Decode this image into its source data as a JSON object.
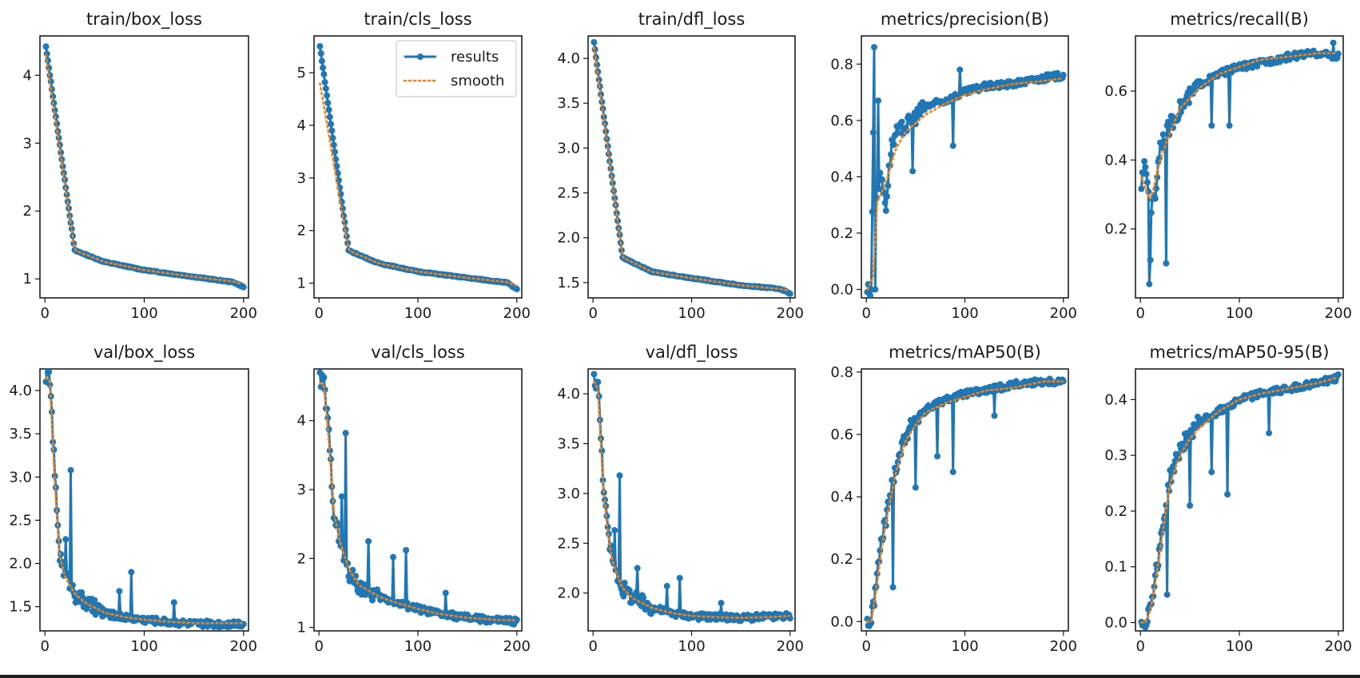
{
  "figure": {
    "legend_results": "results",
    "legend_smooth": "smooth"
  },
  "colors": {
    "results": "#1f77b4",
    "smooth": "#ff7f0e",
    "axis": "#111111",
    "background": "#ffffff"
  },
  "chart_data": [
    {
      "type": "line",
      "id": "train-box-loss",
      "title": "train/box_loss",
      "xlabel": "",
      "ylabel": "",
      "xlim": [
        -5,
        205
      ],
      "ylim": [
        0.72,
        4.58
      ],
      "xticks": [
        0,
        100,
        200
      ],
      "yticks": [
        1,
        2,
        3,
        4
      ],
      "ytick_labels": [
        "1",
        "2",
        "3",
        "4"
      ],
      "grid": false,
      "series": [
        {
          "name": "results",
          "shape": "decay",
          "x": [
            1,
            30,
            60,
            100,
            150,
            190,
            200
          ],
          "values": [
            4.42,
            1.42,
            1.25,
            1.13,
            1.03,
            0.95,
            0.88
          ]
        },
        {
          "name": "smooth",
          "shape": "decay",
          "x": [
            1,
            30,
            60,
            100,
            150,
            190,
            200
          ],
          "values": [
            4.3,
            1.42,
            1.25,
            1.13,
            1.03,
            0.96,
            0.92
          ]
        }
      ],
      "legend": null
    },
    {
      "type": "line",
      "id": "train-cls-loss",
      "title": "train/cls_loss",
      "xlabel": "",
      "ylabel": "",
      "xlim": [
        -5,
        205
      ],
      "ylim": [
        0.72,
        5.7
      ],
      "xticks": [
        0,
        100,
        200
      ],
      "yticks": [
        1,
        2,
        3,
        4,
        5
      ],
      "ytick_labels": [
        "1",
        "2",
        "3",
        "4",
        "5"
      ],
      "grid": false,
      "series": [
        {
          "name": "results",
          "shape": "decay",
          "x": [
            1,
            30,
            60,
            100,
            150,
            190,
            200
          ],
          "values": [
            5.5,
            1.62,
            1.38,
            1.22,
            1.1,
            1.01,
            0.88
          ]
        },
        {
          "name": "smooth",
          "shape": "decay",
          "x": [
            1,
            30,
            60,
            100,
            150,
            190,
            200
          ],
          "values": [
            4.8,
            1.62,
            1.38,
            1.22,
            1.1,
            1.02,
            0.95
          ]
        }
      ],
      "legend": "top-right"
    },
    {
      "type": "line",
      "id": "train-dfl-loss",
      "title": "train/dfl_loss",
      "xlabel": "",
      "ylabel": "",
      "xlim": [
        -5,
        205
      ],
      "ylim": [
        1.33,
        4.25
      ],
      "xticks": [
        0,
        100,
        200
      ],
      "yticks": [
        1.5,
        2.0,
        2.5,
        3.0,
        3.5,
        4.0
      ],
      "ytick_labels": [
        "1.5",
        "2.0",
        "2.5",
        "3.0",
        "3.5",
        "4.0"
      ],
      "grid": false,
      "series": [
        {
          "name": "results",
          "shape": "decay",
          "x": [
            1,
            30,
            60,
            100,
            150,
            190,
            200
          ],
          "values": [
            4.18,
            1.78,
            1.62,
            1.55,
            1.47,
            1.43,
            1.38
          ]
        },
        {
          "name": "smooth",
          "shape": "decay",
          "x": [
            1,
            30,
            60,
            100,
            150,
            190,
            200
          ],
          "values": [
            4.12,
            1.78,
            1.62,
            1.55,
            1.47,
            1.43,
            1.41
          ]
        }
      ],
      "legend": null
    },
    {
      "type": "line",
      "id": "metrics-precision",
      "title": "metrics/precision(B)",
      "xlabel": "",
      "ylabel": "",
      "xlim": [
        -5,
        205
      ],
      "ylim": [
        -0.03,
        0.9
      ],
      "xticks": [
        0,
        100,
        200
      ],
      "yticks": [
        0.0,
        0.2,
        0.4,
        0.6,
        0.8
      ],
      "ytick_labels": [
        "0.0",
        "0.2",
        "0.4",
        "0.6",
        "0.8"
      ],
      "grid": false,
      "series": [
        {
          "name": "results",
          "shape": "rise-noisy",
          "x": [
            1,
            5,
            8,
            10,
            15,
            20,
            25,
            30,
            40,
            60,
            80,
            100,
            120,
            150,
            180,
            200
          ],
          "values": [
            0.0,
            0.0,
            0.86,
            0.35,
            0.4,
            0.3,
            0.5,
            0.55,
            0.58,
            0.65,
            0.67,
            0.7,
            0.72,
            0.73,
            0.75,
            0.76
          ],
          "spikes": [
            [
              8,
              0.86
            ],
            [
              9,
              0.0
            ],
            [
              12,
              0.67
            ],
            [
              47,
              0.42
            ],
            [
              88,
              0.51
            ],
            [
              95,
              0.78
            ]
          ]
        },
        {
          "name": "smooth",
          "shape": "rise",
          "x": [
            1,
            8,
            10,
            20,
            30,
            40,
            60,
            80,
            100,
            120,
            150,
            180,
            200
          ],
          "values": [
            0.0,
            0.05,
            0.3,
            0.38,
            0.5,
            0.56,
            0.62,
            0.66,
            0.69,
            0.71,
            0.73,
            0.74,
            0.75
          ]
        }
      ],
      "legend": null
    },
    {
      "type": "line",
      "id": "metrics-recall",
      "title": "metrics/recall(B)",
      "xlabel": "",
      "ylabel": "",
      "xlim": [
        -5,
        205
      ],
      "ylim": [
        0.0,
        0.76
      ],
      "xticks": [
        0,
        100,
        200
      ],
      "yticks": [
        0.2,
        0.4,
        0.6
      ],
      "ytick_labels": [
        "0.2",
        "0.4",
        "0.6"
      ],
      "grid": false,
      "series": [
        {
          "name": "results",
          "shape": "rise-noisy",
          "x": [
            1,
            5,
            10,
            15,
            20,
            25,
            30,
            40,
            60,
            80,
            100,
            120,
            150,
            180,
            200
          ],
          "values": [
            0.33,
            0.39,
            0.25,
            0.3,
            0.45,
            0.47,
            0.5,
            0.55,
            0.62,
            0.65,
            0.67,
            0.68,
            0.7,
            0.71,
            0.7
          ],
          "spikes": [
            [
              9,
              0.04
            ],
            [
              10,
              0.11
            ],
            [
              26,
              0.1
            ],
            [
              72,
              0.5
            ],
            [
              90,
              0.5
            ],
            [
              195,
              0.74
            ]
          ]
        },
        {
          "name": "smooth",
          "shape": "rise",
          "x": [
            1,
            10,
            20,
            30,
            40,
            60,
            80,
            100,
            120,
            150,
            180,
            200
          ],
          "values": [
            0.35,
            0.28,
            0.4,
            0.48,
            0.55,
            0.61,
            0.65,
            0.67,
            0.69,
            0.7,
            0.71,
            0.71
          ]
        }
      ],
      "legend": null
    },
    {
      "type": "line",
      "id": "val-box-loss",
      "title": "val/box_loss",
      "xlabel": "",
      "ylabel": "",
      "xlim": [
        -5,
        205
      ],
      "ylim": [
        1.22,
        4.25
      ],
      "xticks": [
        0,
        100,
        200
      ],
      "yticks": [
        1.5,
        2.0,
        2.5,
        3.0,
        3.5,
        4.0
      ],
      "ytick_labels": [
        "1.5",
        "2.0",
        "2.5",
        "3.0",
        "3.5",
        "4.0"
      ],
      "grid": false,
      "series": [
        {
          "name": "results",
          "shape": "decay-noisy",
          "x": [
            1,
            5,
            10,
            15,
            20,
            30,
            40,
            60,
            80,
            100,
            120,
            150,
            180,
            200
          ],
          "values": [
            4.18,
            4.15,
            3.0,
            2.1,
            1.9,
            1.65,
            1.55,
            1.42,
            1.38,
            1.35,
            1.33,
            1.3,
            1.3,
            1.31
          ],
          "spikes": [
            [
              26,
              3.08
            ],
            [
              21,
              2.28
            ],
            [
              87,
              1.9
            ],
            [
              75,
              1.68
            ],
            [
              130,
              1.55
            ]
          ]
        },
        {
          "name": "smooth",
          "shape": "decay",
          "x": [
            1,
            5,
            10,
            15,
            20,
            30,
            40,
            60,
            80,
            100,
            120,
            150,
            180,
            200
          ],
          "values": [
            4.15,
            4.1,
            2.9,
            2.1,
            1.85,
            1.65,
            1.55,
            1.43,
            1.38,
            1.35,
            1.33,
            1.31,
            1.31,
            1.31
          ]
        }
      ],
      "legend": null
    },
    {
      "type": "line",
      "id": "val-cls-loss",
      "title": "val/cls_loss",
      "xlabel": "",
      "ylabel": "",
      "xlim": [
        -5,
        205
      ],
      "ylim": [
        0.95,
        4.75
      ],
      "xticks": [
        0,
        100,
        200
      ],
      "yticks": [
        1,
        2,
        3,
        4
      ],
      "ytick_labels": [
        "1",
        "2",
        "3",
        "4"
      ],
      "grid": false,
      "series": [
        {
          "name": "results",
          "shape": "decay-noisy",
          "x": [
            1,
            5,
            10,
            15,
            20,
            30,
            40,
            60,
            80,
            100,
            120,
            150,
            180,
            200
          ],
          "values": [
            4.6,
            4.55,
            3.8,
            2.7,
            2.3,
            1.8,
            1.6,
            1.45,
            1.35,
            1.27,
            1.2,
            1.14,
            1.1,
            1.09
          ],
          "spikes": [
            [
              27,
              3.82
            ],
            [
              23,
              2.9
            ],
            [
              50,
              2.25
            ],
            [
              75,
              2.02
            ],
            [
              88,
              2.12
            ],
            [
              128,
              1.5
            ]
          ]
        },
        {
          "name": "smooth",
          "shape": "decay",
          "x": [
            1,
            5,
            10,
            15,
            20,
            30,
            40,
            60,
            80,
            100,
            120,
            150,
            180,
            200
          ],
          "values": [
            4.55,
            4.5,
            3.7,
            2.7,
            2.3,
            1.85,
            1.62,
            1.45,
            1.35,
            1.27,
            1.2,
            1.14,
            1.11,
            1.1
          ]
        }
      ],
      "legend": null
    },
    {
      "type": "line",
      "id": "val-dfl-loss",
      "title": "val/dfl_loss",
      "xlabel": "",
      "ylabel": "",
      "xlim": [
        -5,
        205
      ],
      "ylim": [
        1.62,
        4.25
      ],
      "xticks": [
        0,
        100,
        200
      ],
      "yticks": [
        2.0,
        2.5,
        3.0,
        3.5,
        4.0
      ],
      "ytick_labels": [
        "2.0",
        "2.5",
        "3.0",
        "3.5",
        "4.0"
      ],
      "grid": false,
      "series": [
        {
          "name": "results",
          "shape": "decay-noisy",
          "x": [
            1,
            5,
            10,
            15,
            20,
            30,
            40,
            60,
            80,
            100,
            120,
            150,
            180,
            200
          ],
          "values": [
            4.15,
            4.1,
            3.2,
            2.6,
            2.3,
            2.05,
            1.95,
            1.85,
            1.8,
            1.77,
            1.76,
            1.75,
            1.76,
            1.77
          ],
          "spikes": [
            [
              27,
              3.18
            ],
            [
              22,
              2.63
            ],
            [
              45,
              2.25
            ],
            [
              75,
              2.07
            ],
            [
              88,
              2.15
            ],
            [
              130,
              1.9
            ]
          ]
        },
        {
          "name": "smooth",
          "shape": "decay",
          "x": [
            1,
            5,
            10,
            15,
            20,
            30,
            40,
            60,
            80,
            100,
            120,
            150,
            180,
            200
          ],
          "values": [
            4.12,
            4.05,
            3.1,
            2.6,
            2.3,
            2.05,
            1.95,
            1.85,
            1.8,
            1.77,
            1.76,
            1.75,
            1.76,
            1.77
          ]
        }
      ],
      "legend": null
    },
    {
      "type": "line",
      "id": "metrics-map50",
      "title": "metrics/mAP50(B)",
      "xlabel": "",
      "ylabel": "",
      "xlim": [
        -5,
        205
      ],
      "ylim": [
        -0.03,
        0.81
      ],
      "xticks": [
        0,
        100,
        200
      ],
      "yticks": [
        0.0,
        0.2,
        0.4,
        0.6,
        0.8
      ],
      "ytick_labels": [
        "0.0",
        "0.2",
        "0.4",
        "0.6",
        "0.8"
      ],
      "grid": false,
      "series": [
        {
          "name": "results",
          "shape": "rise-noisy",
          "x": [
            1,
            5,
            10,
            15,
            20,
            25,
            30,
            40,
            50,
            60,
            80,
            100,
            120,
            150,
            180,
            200
          ],
          "values": [
            0.0,
            0.0,
            0.12,
            0.25,
            0.33,
            0.42,
            0.5,
            0.6,
            0.65,
            0.68,
            0.71,
            0.73,
            0.74,
            0.76,
            0.77,
            0.77
          ],
          "spikes": [
            [
              27,
              0.11
            ],
            [
              50,
              0.43
            ],
            [
              72,
              0.53
            ],
            [
              88,
              0.48
            ],
            [
              130,
              0.66
            ]
          ]
        },
        {
          "name": "smooth",
          "shape": "rise",
          "x": [
            1,
            5,
            10,
            15,
            20,
            25,
            30,
            40,
            50,
            60,
            80,
            100,
            120,
            150,
            180,
            200
          ],
          "values": [
            0.0,
            0.0,
            0.1,
            0.22,
            0.32,
            0.4,
            0.48,
            0.58,
            0.63,
            0.67,
            0.7,
            0.72,
            0.74,
            0.75,
            0.77,
            0.77
          ]
        }
      ],
      "legend": null
    },
    {
      "type": "line",
      "id": "metrics-map50-95",
      "title": "metrics/mAP50-95(B)",
      "xlabel": "",
      "ylabel": "",
      "xlim": [
        -5,
        205
      ],
      "ylim": [
        -0.015,
        0.455
      ],
      "xticks": [
        0,
        100,
        200
      ],
      "yticks": [
        0.0,
        0.1,
        0.2,
        0.3,
        0.4
      ],
      "ytick_labels": [
        "0.0",
        "0.1",
        "0.2",
        "0.3",
        "0.4"
      ],
      "grid": false,
      "series": [
        {
          "name": "results",
          "shape": "rise-noisy",
          "x": [
            1,
            5,
            10,
            15,
            20,
            25,
            30,
            40,
            50,
            60,
            80,
            100,
            120,
            150,
            180,
            200
          ],
          "values": [
            0.0,
            0.0,
            0.03,
            0.08,
            0.14,
            0.2,
            0.26,
            0.31,
            0.34,
            0.36,
            0.38,
            0.4,
            0.41,
            0.42,
            0.43,
            0.44
          ],
          "spikes": [
            [
              27,
              0.05
            ],
            [
              50,
              0.21
            ],
            [
              72,
              0.27
            ],
            [
              88,
              0.23
            ],
            [
              130,
              0.34
            ]
          ]
        },
        {
          "name": "smooth",
          "shape": "rise",
          "x": [
            1,
            5,
            10,
            15,
            20,
            25,
            30,
            40,
            50,
            60,
            80,
            100,
            120,
            150,
            180,
            200
          ],
          "values": [
            0.0,
            0.0,
            0.02,
            0.07,
            0.13,
            0.19,
            0.25,
            0.3,
            0.33,
            0.35,
            0.38,
            0.4,
            0.41,
            0.42,
            0.43,
            0.44
          ]
        }
      ],
      "legend": null
    }
  ]
}
